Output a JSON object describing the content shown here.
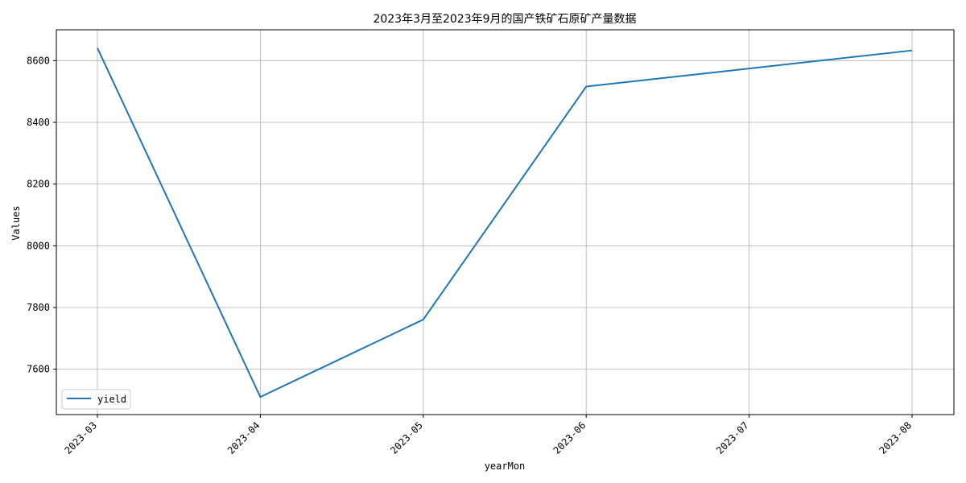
{
  "chart_data": {
    "type": "line",
    "title": "2023年3月至2023年9月的国产铁矿石原矿产量数据",
    "xlabel": "yearMon",
    "ylabel": "Values",
    "x": [
      "2023-03",
      "2023-04",
      "2023-05",
      "2023-06",
      "2023-07",
      "2023-08"
    ],
    "series": [
      {
        "name": "yield",
        "color": "#1f77b4",
        "points": [
          {
            "x": "2023-03",
            "y": 8641
          },
          {
            "x": "2023-04",
            "y": 7510
          },
          {
            "x": "2023-05",
            "y": 7761
          },
          {
            "x": "2023-06",
            "y": 8516
          },
          {
            "x": "2023-08",
            "y": 8633
          }
        ]
      }
    ],
    "yticks": [
      7600,
      7800,
      8000,
      8200,
      8400,
      8600
    ],
    "ylim": [
      7453,
      8700
    ],
    "grid": true,
    "legend_position": "lower-left"
  }
}
